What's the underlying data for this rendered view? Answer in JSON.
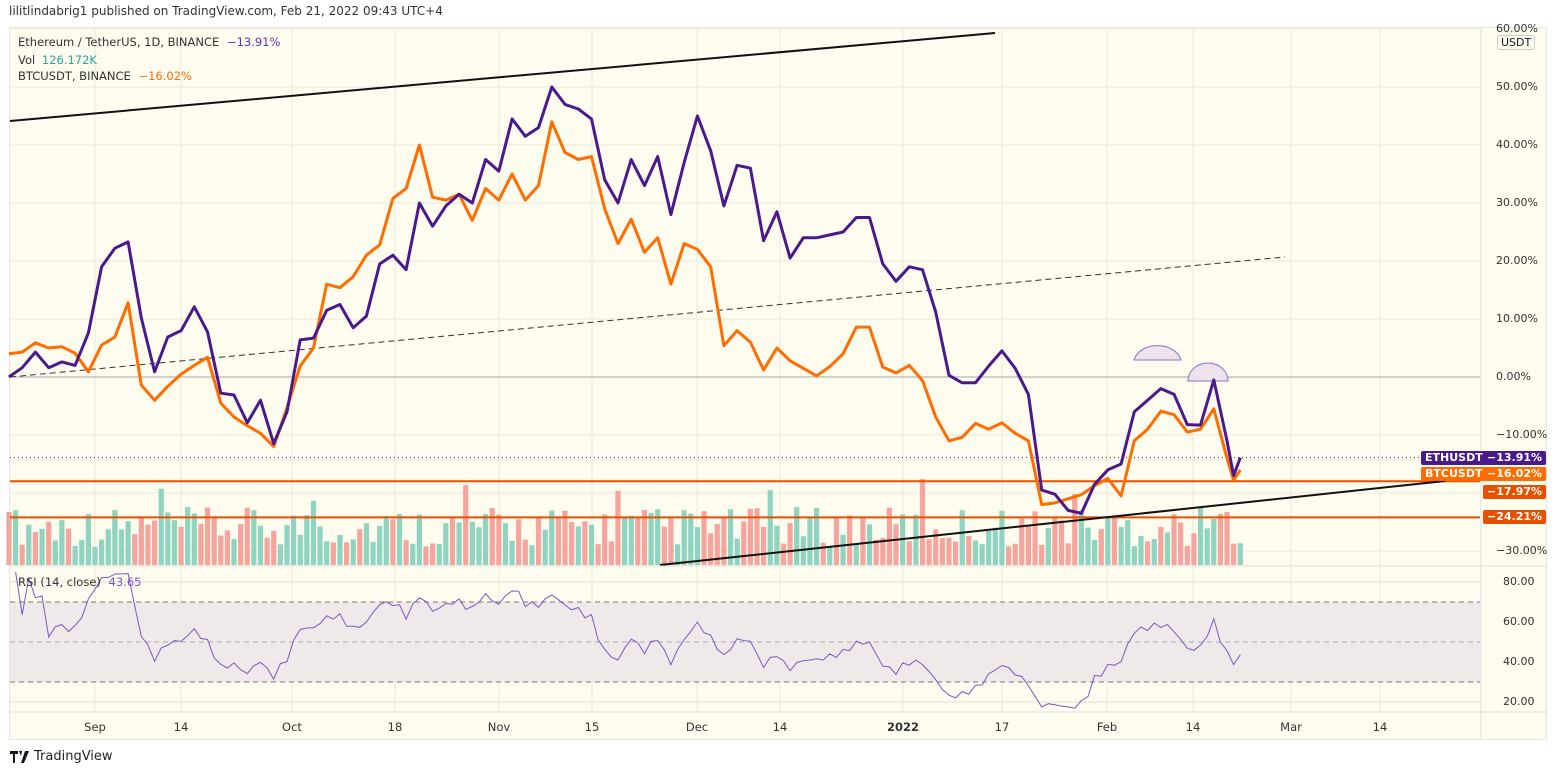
{
  "header": {
    "published": "lilitlindabrig1 published on TradingView.com, Feb 21, 2022 09:43 UTC+4"
  },
  "legend": {
    "main_symbol": "Ethereum / TetherUS, 1D, BINANCE",
    "main_change": "−13.91%",
    "vol_label": "Vol",
    "vol_value": "126.172K",
    "compare_symbol": "BTCUSDT, BINANCE",
    "compare_change": "−16.02%"
  },
  "rsi_legend": {
    "label": "RSI (14, close)",
    "value": "43.65"
  },
  "currency_badge": "USDT",
  "price_axis": [
    "60.00%",
    "50.00%",
    "40.00%",
    "30.00%",
    "20.00%",
    "10.00%",
    "0.00%",
    "−10.00%",
    "−30.00%"
  ],
  "rsi_axis": [
    "80.00",
    "60.00",
    "40.00",
    "20.00"
  ],
  "price_tags": {
    "eth_name": "ETHUSDT",
    "eth_value": "−13.91%",
    "btc_name": "BTCUSDT",
    "btc_value": "−16.02%",
    "line1_value": "−17.97%",
    "line2_value": "−24.21%"
  },
  "time_axis": [
    "Sep",
    "14",
    "Oct",
    "18",
    "Nov",
    "15",
    "Dec",
    "14",
    "2022",
    "17",
    "Feb",
    "14",
    "Mar",
    "14"
  ],
  "footer": {
    "brand": "TradingView"
  },
  "colors": {
    "eth": "#4a1a8c",
    "btc": "#ff6d00",
    "level": "#e65100",
    "vol_up": "#8fd3c1",
    "vol_down": "#f5a59d",
    "rsi": "#7e57c2",
    "background": "#fdfcee"
  },
  "chart_data": {
    "type": "line",
    "ylabel": "",
    "yunit": "%",
    "ylim": [
      -32,
      62
    ],
    "grid": true,
    "legend": "top-left",
    "x": [
      "2021-08-19",
      "2021-08-21",
      "2021-08-23",
      "2021-08-25",
      "2021-08-27",
      "2021-08-29",
      "2021-08-31",
      "2021-09-02",
      "2021-09-04",
      "2021-09-06",
      "2021-09-08",
      "2021-09-10",
      "2021-09-12",
      "2021-09-14",
      "2021-09-16",
      "2021-09-18",
      "2021-09-20",
      "2021-09-22",
      "2021-09-24",
      "2021-09-26",
      "2021-09-28",
      "2021-09-30",
      "2021-10-02",
      "2021-10-04",
      "2021-10-06",
      "2021-10-08",
      "2021-10-10",
      "2021-10-12",
      "2021-10-14",
      "2021-10-16",
      "2021-10-18",
      "2021-10-20",
      "2021-10-22",
      "2021-10-24",
      "2021-10-26",
      "2021-10-28",
      "2021-10-30",
      "2021-11-01",
      "2021-11-03",
      "2021-11-05",
      "2021-11-07",
      "2021-11-09",
      "2021-11-11",
      "2021-11-13",
      "2021-11-15",
      "2021-11-17",
      "2021-11-19",
      "2021-11-21",
      "2021-11-23",
      "2021-11-25",
      "2021-11-27",
      "2021-11-29",
      "2021-12-01",
      "2021-12-03",
      "2021-12-05",
      "2021-12-07",
      "2021-12-09",
      "2021-12-11",
      "2021-12-13",
      "2021-12-15",
      "2021-12-17",
      "2021-12-19",
      "2021-12-21",
      "2021-12-23",
      "2021-12-25",
      "2021-12-27",
      "2021-12-29",
      "2021-12-31",
      "2022-01-02",
      "2022-01-04",
      "2022-01-06",
      "2022-01-08",
      "2022-01-10",
      "2022-01-12",
      "2022-01-14",
      "2022-01-16",
      "2022-01-18",
      "2022-01-20",
      "2022-01-22",
      "2022-01-24",
      "2022-01-26",
      "2022-01-28",
      "2022-01-30",
      "2022-02-01",
      "2022-02-03",
      "2022-02-05",
      "2022-02-07",
      "2022-02-09",
      "2022-02-11",
      "2022-02-13",
      "2022-02-15",
      "2022-02-17",
      "2022-02-19",
      "2022-02-20",
      "2022-02-21"
    ],
    "series": [
      {
        "name": "ETHUSDT",
        "values": [
          0,
          1.6,
          4.3,
          1.6,
          2.6,
          2,
          7.6,
          19,
          22.2,
          23.3,
          10.2,
          0.9,
          6.9,
          8,
          12.1,
          7.8,
          -2.8,
          -3.1,
          -7.9,
          -4,
          -11.5,
          -6,
          6.4,
          6.7,
          11.5,
          12.5,
          8.5,
          10.5,
          19.5,
          21,
          18.5,
          30,
          26,
          29.5,
          31.5,
          30,
          37.5,
          35.5,
          44.5,
          41.5,
          43,
          50,
          47,
          46.2,
          44.5,
          34,
          30,
          37.5,
          33,
          38,
          28,
          37,
          45,
          39,
          29.5,
          36.5,
          36,
          23.5,
          28.5,
          20.5,
          24,
          24,
          24.5,
          25,
          27.5,
          27.5,
          19.5,
          16.5,
          19,
          18.5,
          11.2,
          0.3,
          -1,
          -1,
          1.9,
          4.5,
          1.5,
          -3,
          -19.5,
          -20.2,
          -23,
          -23.5,
          -18.5,
          -16,
          -15,
          -6,
          -4,
          -2,
          -3,
          -8.2,
          -8.3,
          -0.5,
          -11,
          -17,
          -13.91
        ]
      },
      {
        "name": "BTCUSDT",
        "values": [
          4,
          4.3,
          5.9,
          5,
          5.2,
          4.1,
          0.9,
          5.5,
          6.9,
          12.8,
          -1.4,
          -4,
          -1.6,
          0.5,
          2,
          3.4,
          -4.5,
          -6.9,
          -8.4,
          -9.7,
          -12,
          -5.3,
          1.9,
          5,
          16,
          15.4,
          17.3,
          21,
          22.8,
          30.8,
          32.5,
          40,
          31,
          30.5,
          31.5,
          27,
          32.5,
          30.5,
          35,
          30.5,
          33,
          44,
          38.7,
          37.5,
          38,
          29,
          23,
          27.2,
          21.5,
          24,
          16,
          23,
          22,
          19,
          5.4,
          8,
          6,
          1.2,
          5,
          2.8,
          1.5,
          0.2,
          1.8,
          4,
          8.6,
          8.6,
          1.7,
          0.7,
          2,
          -0.6,
          -6.9,
          -11,
          -10.4,
          -8,
          -9,
          -7.9,
          -9.7,
          -11,
          -22,
          -21.7,
          -21,
          -20.3,
          -18.7,
          -17.5,
          -20.5,
          -11,
          -9,
          -5.9,
          -6.5,
          -9.5,
          -9,
          -5.5,
          -14,
          -17.8,
          -16.02
        ]
      }
    ],
    "horizontal_levels": [
      -13.91,
      -17.97,
      -24.21
    ],
    "rsi": {
      "period": 14,
      "last": 43.65,
      "ylim": [
        15,
        85
      ],
      "bands": [
        30,
        50,
        70
      ]
    }
  }
}
